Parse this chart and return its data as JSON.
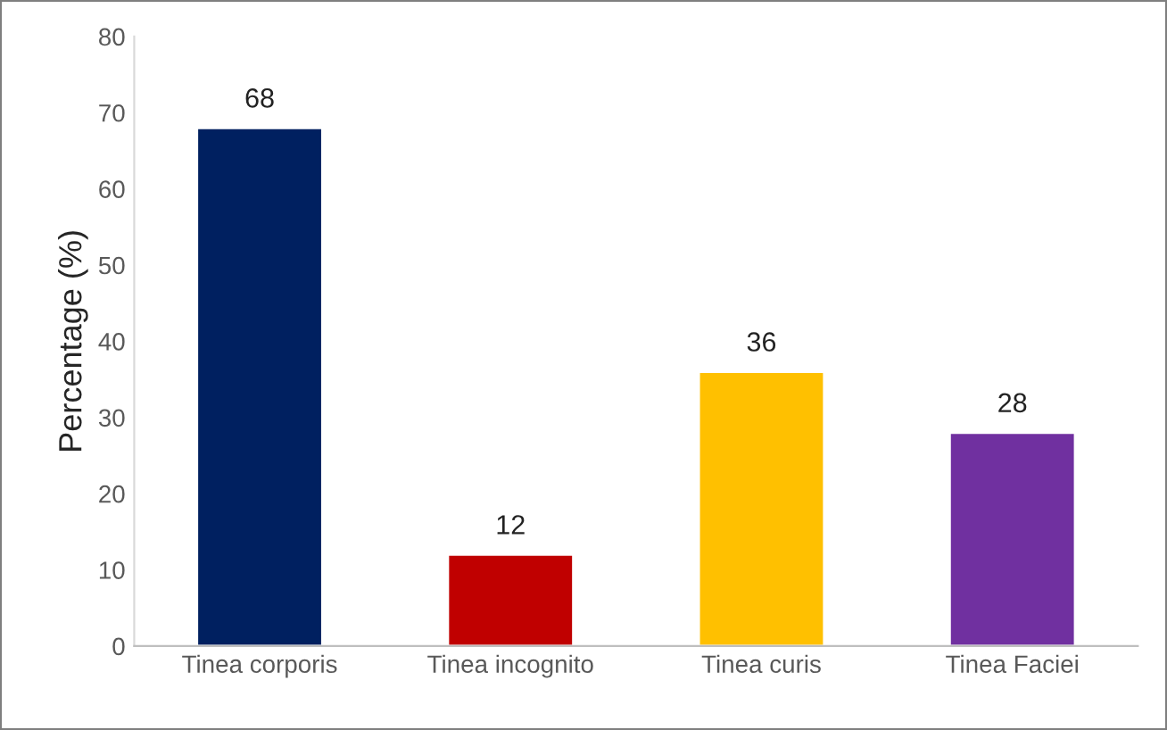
{
  "chart_data": {
    "type": "bar",
    "ylabel": "Percentage (%)",
    "categories": [
      "Tinea corporis",
      "Tinea incognito",
      "Tinea curis",
      "Tinea Faciei"
    ],
    "values": [
      68,
      12,
      36,
      28
    ],
    "colors": [
      "#002060",
      "#c00000",
      "#ffc000",
      "#7030a0"
    ],
    "ylim": [
      0,
      80
    ],
    "yticks": [
      0,
      10,
      20,
      30,
      40,
      50,
      60,
      70,
      80
    ],
    "data_labels": true,
    "grid": false,
    "legend": false
  }
}
